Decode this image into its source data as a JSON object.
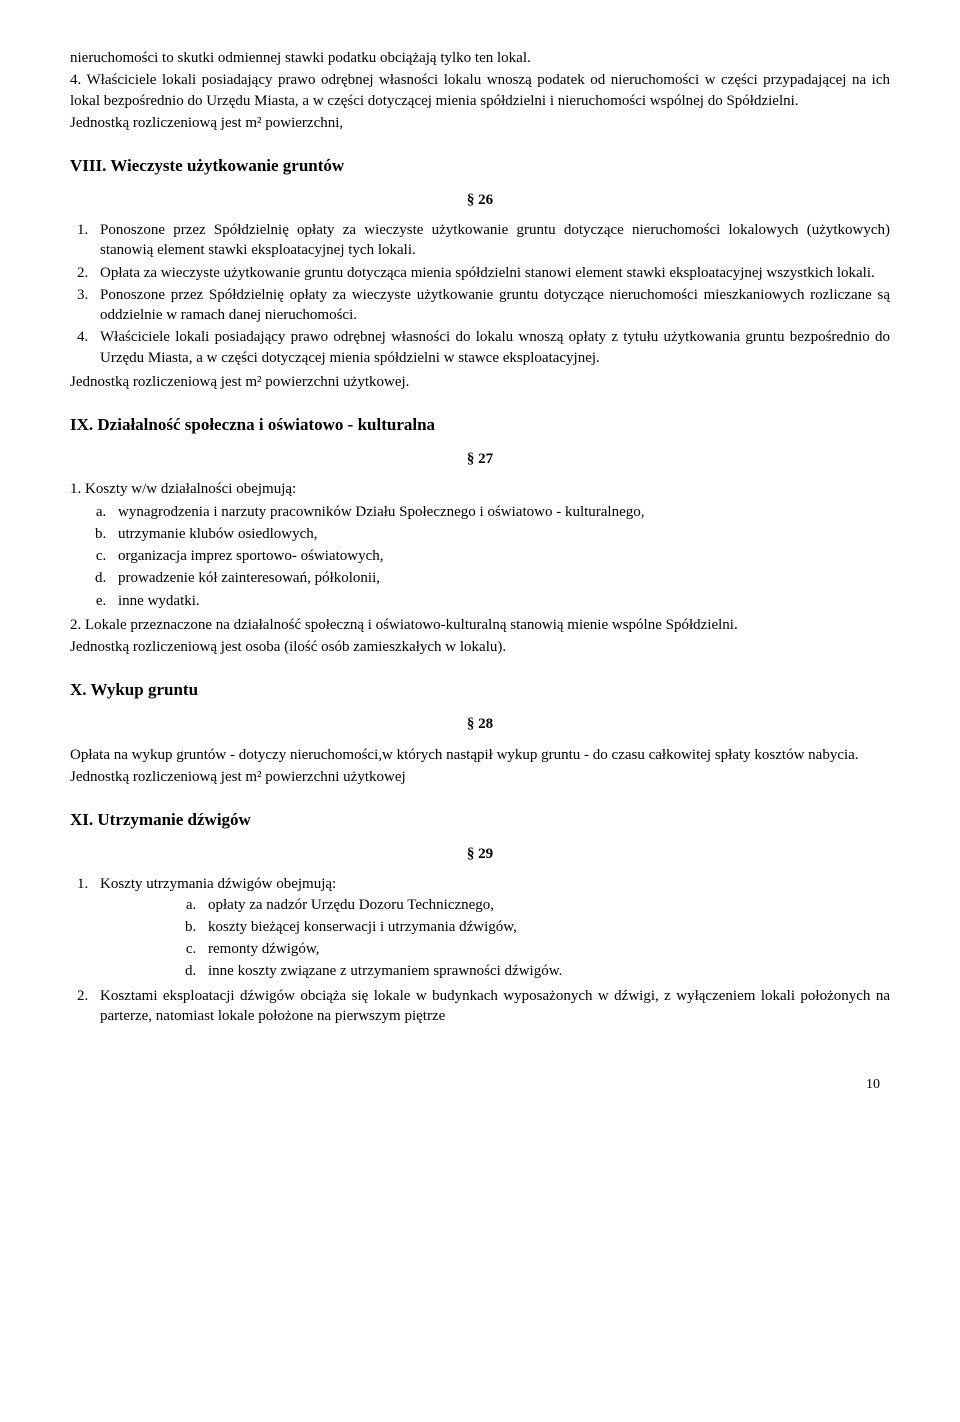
{
  "intro": {
    "p1": "nieruchomości to skutki odmiennej stawki podatku obciążają tylko ten lokal.",
    "p2": "4. Właściciele lokali posiadający prawo odrębnej własności lokalu wnoszą podatek od nieruchomości w części przypadającej na ich lokal bezpośrednio do Urzędu Miasta, a w części dotyczącej mienia spółdzielni i nieruchomości wspólnej do Spółdzielni.",
    "p3": "Jednostką rozliczeniową jest m² powierzchni,"
  },
  "s8": {
    "heading": "VIII. Wieczyste użytkowanie gruntów",
    "sym": "§ 26",
    "li1": "Ponoszone przez Spółdzielnię opłaty za wieczyste użytkowanie gruntu dotyczące nieruchomości lokalowych (użytkowych) stanowią element stawki eksploatacyjnej tych lokali.",
    "li2": "Opłata za wieczyste użytkowanie gruntu dotycząca mienia spółdzielni stanowi element stawki eksploatacyjnej wszystkich lokali.",
    "li3": "Ponoszone przez Spółdzielnię opłaty za wieczyste użytkowanie gruntu dotyczące nieruchomości mieszkaniowych rozliczane są oddzielnie w ramach danej nieruchomości.",
    "li4": "Właściciele lokali posiadający prawo odrębnej własności do lokalu wnoszą opłaty z tytułu użytkowania gruntu bezpośrednio do Urzędu Miasta, a w części dotyczącej mienia spółdzielni w stawce eksploatacyjnej.",
    "after": "Jednostką rozliczeniową jest m² powierzchni użytkowej."
  },
  "s9": {
    "heading": "IX.  Działalność społeczna i oświatowo - kulturalna",
    "sym": "§ 27",
    "p1": "1. Koszty w/w działalności obejmują:",
    "a": "wynagrodzenia i narzuty pracowników Działu Społecznego i oświatowo - kulturalnego,",
    "b": "utrzymanie klubów osiedlowych,",
    "c": "organizacja imprez sportowo- oświatowych,",
    "d": "prowadzenie kół zainteresowań, półkolonii,",
    "e": "inne wydatki.",
    "p2": "2. Lokale przeznaczone na działalność społeczną i oświatowo-kulturalną stanowią mienie wspólne Spółdzielni.",
    "p3": "Jednostką rozliczeniową jest osoba (ilość osób zamieszkałych w lokalu)."
  },
  "s10": {
    "heading": "X. Wykup gruntu",
    "sym": "§ 28",
    "p1": "Opłata na wykup gruntów - dotyczy nieruchomości,w których nastąpił wykup gruntu - do czasu całkowitej spłaty kosztów nabycia.",
    "p2": " Jednostką rozliczeniową jest m² powierzchni użytkowej"
  },
  "s11": {
    "heading": "XI.  Utrzymanie dźwigów",
    "sym": "§ 29",
    "li1": "Koszty utrzymania dźwigów obejmują:",
    "a": "opłaty za nadzór Urzędu Dozoru Technicznego,",
    "b": "koszty bieżącej konserwacji i utrzymania dźwigów,",
    "c": "remonty dźwigów,",
    "d": "inne koszty związane z utrzymaniem sprawności dźwigów.",
    "li2": "Kosztami eksploatacji dźwigów obciąża się lokale w budynkach wyposażonych w dźwigi, z wyłączeniem lokali położonych na parterze, natomiast lokale położone na pierwszym piętrze"
  },
  "pagenum": "10"
}
